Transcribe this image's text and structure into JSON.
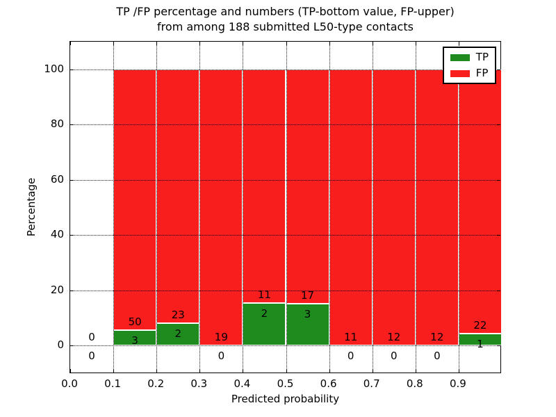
{
  "chart_data": {
    "type": "bar",
    "stacked": true,
    "title_line1": "TP /FP percentage and numbers (TP-bottom value, FP-upper)",
    "title_line2": "from among 188 submitted L50-type contacts",
    "xlabel": "Predicted probability",
    "ylabel": "Percentage",
    "xlim": [
      0.0,
      1.0
    ],
    "ylim": [
      -10.3,
      110.0
    ],
    "grid": "dotted",
    "legend_position": "upper-right",
    "legend": [
      {
        "label": "TP",
        "color": "#1f8b1f"
      },
      {
        "label": "FP",
        "color": "#f91e1e"
      }
    ],
    "colors": {
      "tp": "#1f8b1f",
      "fp": "#f91e1e",
      "axis": "#000000",
      "background": "#ffffff"
    },
    "total_contacts": 188,
    "x_ticks": [
      {
        "value": 0.0,
        "label": "0.0"
      },
      {
        "value": 0.1,
        "label": "0.1"
      },
      {
        "value": 0.2,
        "label": "0.2"
      },
      {
        "value": 0.3,
        "label": "0.3"
      },
      {
        "value": 0.4,
        "label": "0.4"
      },
      {
        "value": 0.5,
        "label": "0.5"
      },
      {
        "value": 0.6,
        "label": "0.6"
      },
      {
        "value": 0.7,
        "label": "0.7"
      },
      {
        "value": 0.8,
        "label": "0.8"
      },
      {
        "value": 0.9,
        "label": "0.9"
      }
    ],
    "y_ticks": [
      {
        "value": 0,
        "label": "0"
      },
      {
        "value": 20,
        "label": "20"
      },
      {
        "value": 40,
        "label": "40"
      },
      {
        "value": 60,
        "label": "60"
      },
      {
        "value": 80,
        "label": "80"
      },
      {
        "value": 100,
        "label": "100"
      }
    ],
    "bins": [
      {
        "x0": 0.0,
        "x1": 0.1,
        "tp": 0,
        "fp": 0,
        "tp_pct": 0
      },
      {
        "x0": 0.1,
        "x1": 0.2,
        "tp": 3,
        "fp": 50,
        "tp_pct": 5.66
      },
      {
        "x0": 0.2,
        "x1": 0.3,
        "tp": 2,
        "fp": 23,
        "tp_pct": 8.0
      },
      {
        "x0": 0.3,
        "x1": 0.4,
        "tp": 0,
        "fp": 19,
        "tp_pct": 0
      },
      {
        "x0": 0.4,
        "x1": 0.5,
        "tp": 2,
        "fp": 11,
        "tp_pct": 15.38
      },
      {
        "x0": 0.5,
        "x1": 0.6,
        "tp": 3,
        "fp": 17,
        "tp_pct": 15.0
      },
      {
        "x0": 0.6,
        "x1": 0.7,
        "tp": 0,
        "fp": 11,
        "tp_pct": 0
      },
      {
        "x0": 0.7,
        "x1": 0.8,
        "tp": 0,
        "fp": 12,
        "tp_pct": 0
      },
      {
        "x0": 0.8,
        "x1": 0.9,
        "tp": 0,
        "fp": 12,
        "tp_pct": 0
      },
      {
        "x0": 0.9,
        "x1": 1.0,
        "tp": 1,
        "fp": 22,
        "tp_pct": 4.35
      }
    ]
  }
}
